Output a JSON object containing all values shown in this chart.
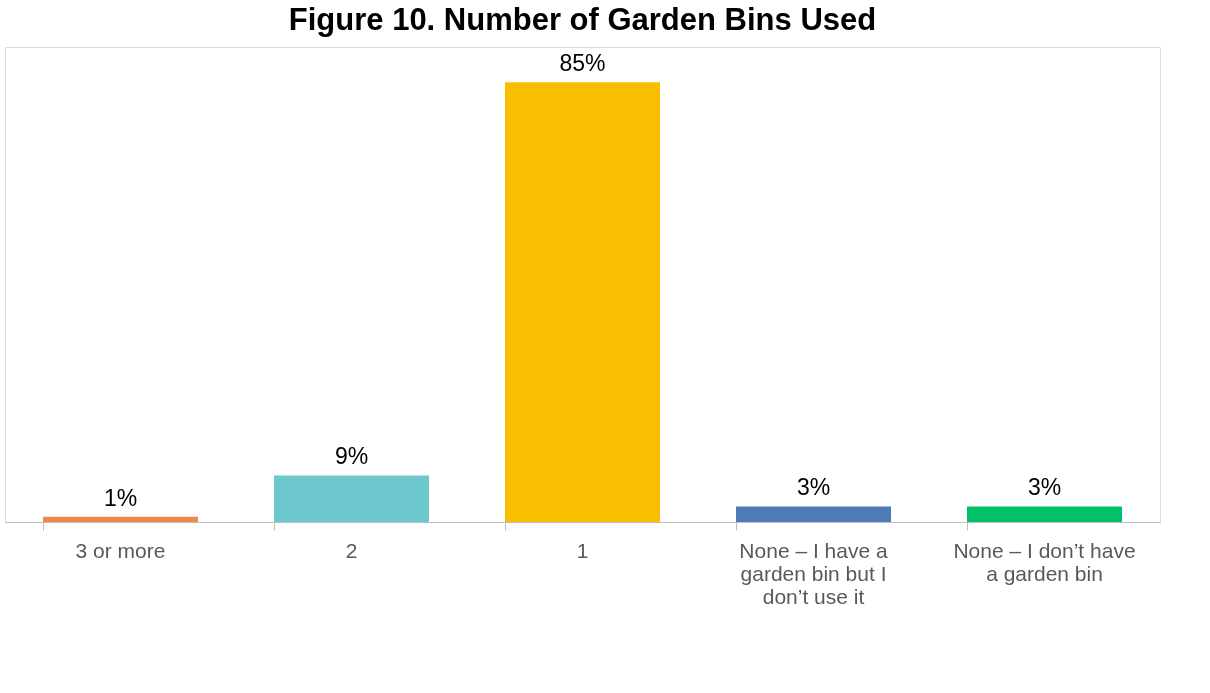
{
  "chart_data": {
    "type": "bar",
    "title": "Figure 10. Number of Garden Bins Used",
    "categories": [
      "3 or more",
      "2",
      "1",
      "None – I have a garden bin but I don’t use it",
      "None – I don’t have a garden bin"
    ],
    "values": [
      1,
      9,
      85,
      3,
      3
    ],
    "colors": [
      "#f0884e",
      "#6cc8cc",
      "#f8be00",
      "#4e7ab5",
      "#00c06a"
    ],
    "value_labels": [
      "1%",
      "9%",
      "85%",
      "3%",
      "3%"
    ],
    "grid": false,
    "legend": false
  }
}
